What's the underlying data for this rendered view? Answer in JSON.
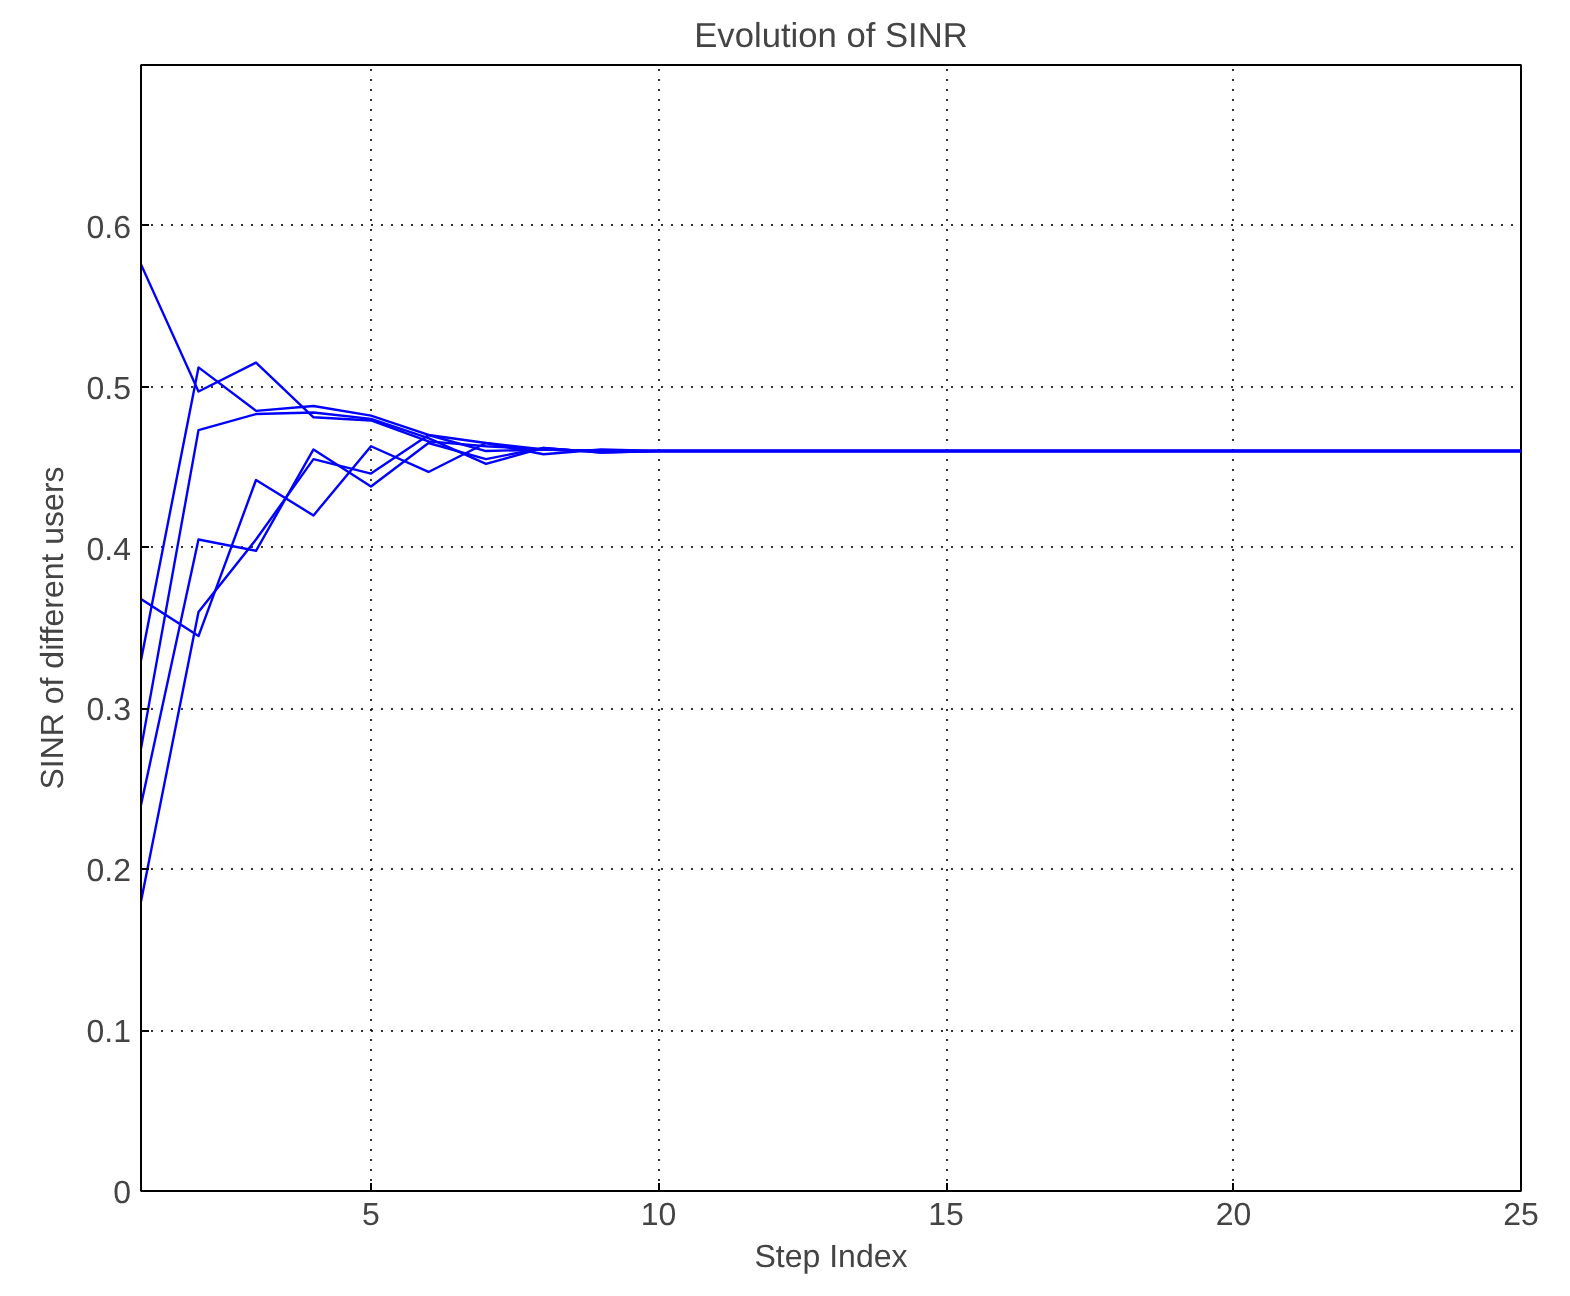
{
  "chart_data": {
    "type": "line",
    "title": "Evolution of SINR",
    "xlabel": "Step Index",
    "ylabel": "SINR of different users",
    "x": [
      1,
      2,
      3,
      4,
      5,
      6,
      7,
      8,
      9,
      10,
      11,
      12,
      13,
      14,
      15,
      16,
      17,
      18,
      19,
      20,
      21,
      22,
      23,
      24,
      25
    ],
    "xlim": [
      1,
      25
    ],
    "xticks": [
      5,
      10,
      15,
      20,
      25
    ],
    "ylim": [
      0,
      0.7
    ],
    "yticks": [
      0,
      0.1,
      0.2,
      0.3,
      0.4,
      0.5,
      0.6
    ],
    "grid": true,
    "line_style": "solid",
    "series": [
      {
        "color": "#0000ff",
        "values": [
          0.576,
          0.497,
          0.515,
          0.481,
          0.479,
          0.466,
          0.463,
          0.461,
          0.46,
          0.46,
          0.46,
          0.46,
          0.46,
          0.46,
          0.46,
          0.46,
          0.46,
          0.46,
          0.46,
          0.46,
          0.46,
          0.46,
          0.46,
          0.46,
          0.46
        ]
      },
      {
        "color": "#0000ff",
        "values": [
          0.33,
          0.512,
          0.485,
          0.488,
          0.482,
          0.47,
          0.465,
          0.461,
          0.46,
          0.46,
          0.46,
          0.46,
          0.46,
          0.46,
          0.46,
          0.46,
          0.46,
          0.46,
          0.46,
          0.46,
          0.46,
          0.46,
          0.46,
          0.46,
          0.46
        ]
      },
      {
        "color": "#0000ff",
        "values": [
          0.275,
          0.473,
          0.483,
          0.484,
          0.48,
          0.468,
          0.452,
          0.462,
          0.459,
          0.46,
          0.46,
          0.46,
          0.46,
          0.46,
          0.46,
          0.46,
          0.46,
          0.46,
          0.46,
          0.46,
          0.46,
          0.46,
          0.46,
          0.46,
          0.46
        ]
      },
      {
        "color": "#0000ff",
        "values": [
          0.368,
          0.345,
          0.442,
          0.42,
          0.463,
          0.447,
          0.465,
          0.458,
          0.461,
          0.46,
          0.46,
          0.46,
          0.46,
          0.46,
          0.46,
          0.46,
          0.46,
          0.46,
          0.46,
          0.46,
          0.46,
          0.46,
          0.46,
          0.46,
          0.46
        ]
      },
      {
        "color": "#0000ff",
        "values": [
          0.24,
          0.405,
          0.398,
          0.461,
          0.438,
          0.465,
          0.455,
          0.462,
          0.459,
          0.46,
          0.46,
          0.46,
          0.46,
          0.46,
          0.46,
          0.46,
          0.46,
          0.46,
          0.46,
          0.46,
          0.46,
          0.46,
          0.46,
          0.46,
          0.46
        ]
      },
      {
        "color": "#0000ff",
        "values": [
          0.18,
          0.36,
          0.405,
          0.455,
          0.446,
          0.47,
          0.46,
          0.461,
          0.46,
          0.46,
          0.46,
          0.46,
          0.46,
          0.46,
          0.46,
          0.46,
          0.46,
          0.46,
          0.46,
          0.46,
          0.46,
          0.46,
          0.46,
          0.46,
          0.46
        ]
      }
    ]
  }
}
